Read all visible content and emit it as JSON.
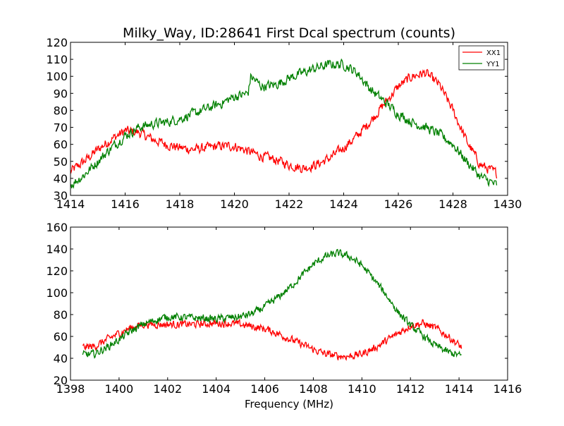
{
  "chart_data": [
    {
      "type": "line",
      "title": "Milky_Way, ID:28641 First Dcal spectrum (counts)",
      "xlabel": "",
      "ylabel": "",
      "xlim": [
        1414,
        1430
      ],
      "ylim": [
        30,
        120
      ],
      "xticks": [
        1414,
        1416,
        1418,
        1420,
        1422,
        1424,
        1426,
        1428,
        1430
      ],
      "yticks": [
        30,
        40,
        50,
        60,
        70,
        80,
        90,
        100,
        110,
        120
      ],
      "grid": false,
      "legend": "top-right",
      "noise": 2.5,
      "series": [
        {
          "name": "XX1",
          "color": "#ff0000",
          "x": [
            1414.0,
            1414.5,
            1415.0,
            1415.5,
            1416.0,
            1416.5,
            1417.0,
            1417.5,
            1418.0,
            1418.5,
            1419.0,
            1419.5,
            1420.0,
            1420.5,
            1421.0,
            1421.5,
            1422.0,
            1422.5,
            1423.0,
            1423.5,
            1424.0,
            1424.5,
            1425.0,
            1425.5,
            1426.0,
            1426.5,
            1427.0,
            1427.5,
            1428.0,
            1428.5,
            1429.0,
            1429.6
          ],
          "values": [
            44,
            50,
            57,
            63,
            68,
            67,
            63,
            60,
            58,
            57,
            58,
            59,
            59,
            56,
            53,
            51,
            48,
            46,
            48,
            52,
            58,
            65,
            74,
            84,
            94,
            100,
            102,
            95,
            80,
            62,
            48,
            43
          ]
        },
        {
          "name": "YY1",
          "color": "#008000",
          "x": [
            1414.0,
            1414.5,
            1415.0,
            1415.5,
            1416.0,
            1416.5,
            1417.0,
            1417.5,
            1418.0,
            1418.5,
            1419.0,
            1419.5,
            1420.0,
            1420.5,
            1420.6,
            1421.0,
            1421.5,
            1422.0,
            1422.5,
            1423.0,
            1423.5,
            1424.0,
            1424.5,
            1425.0,
            1425.5,
            1426.0,
            1426.5,
            1427.0,
            1427.5,
            1428.0,
            1428.5,
            1429.0,
            1429.6
          ],
          "values": [
            36,
            42,
            50,
            58,
            65,
            70,
            72,
            73,
            75,
            78,
            81,
            84,
            88,
            90,
            100,
            94,
            95,
            99,
            102,
            105,
            107,
            107,
            102,
            92,
            85,
            78,
            73,
            70,
            66,
            60,
            50,
            41,
            36
          ]
        }
      ]
    },
    {
      "type": "line",
      "title": "",
      "xlabel": "Frequency (MHz)",
      "ylabel": "",
      "xlim": [
        1398,
        1416
      ],
      "ylim": [
        20,
        160
      ],
      "xticks": [
        1398,
        1400,
        1402,
        1404,
        1406,
        1408,
        1410,
        1412,
        1414,
        1416
      ],
      "yticks": [
        20,
        40,
        60,
        80,
        100,
        120,
        140,
        160
      ],
      "grid": false,
      "noise": 3,
      "series": [
        {
          "color": "#ff0000",
          "x": [
            1398.5,
            1399.0,
            1399.5,
            1400.0,
            1400.5,
            1401.0,
            1402.0,
            1403.0,
            1404.0,
            1404.5,
            1405.0,
            1405.5,
            1406.0,
            1406.5,
            1407.0,
            1407.5,
            1408.0,
            1408.5,
            1409.0,
            1409.5,
            1410.0,
            1410.5,
            1411.0,
            1411.5,
            1412.0,
            1412.5,
            1413.0,
            1413.5,
            1414.1
          ],
          "values": [
            50,
            51,
            57,
            63,
            68,
            71,
            71,
            71,
            72,
            72,
            71,
            69,
            67,
            63,
            58,
            53,
            48,
            44,
            42,
            42,
            44,
            49,
            56,
            63,
            70,
            72,
            68,
            61,
            50
          ]
        },
        {
          "color": "#008000",
          "x": [
            1398.5,
            1399.0,
            1399.5,
            1400.0,
            1400.5,
            1401.0,
            1401.5,
            1402.0,
            1403.0,
            1404.0,
            1405.0,
            1405.5,
            1406.0,
            1406.5,
            1407.0,
            1407.5,
            1408.0,
            1408.5,
            1409.0,
            1409.5,
            1410.0,
            1410.5,
            1411.0,
            1411.5,
            1412.0,
            1412.5,
            1413.0,
            1413.5,
            1414.1
          ],
          "values": [
            43,
            44,
            50,
            57,
            65,
            71,
            75,
            78,
            77,
            76,
            78,
            81,
            87,
            95,
            104,
            115,
            126,
            133,
            136,
            133,
            125,
            112,
            98,
            82,
            70,
            61,
            52,
            46,
            42
          ]
        }
      ]
    }
  ]
}
